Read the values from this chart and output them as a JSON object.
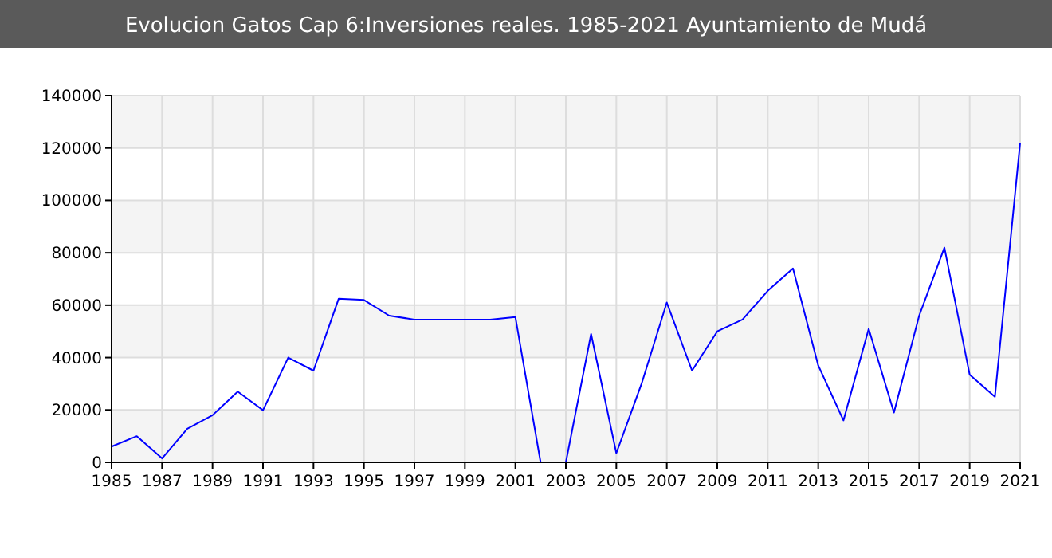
{
  "chart_data": {
    "type": "line",
    "title": "Evolucion Gatos Cap 6:Inversiones reales. 1985-2021 Ayuntamiento de Mudá",
    "x": [
      1985,
      1986,
      1987,
      1988,
      1989,
      1990,
      1991,
      1992,
      1993,
      1994,
      1995,
      1996,
      1997,
      1998,
      1999,
      2000,
      2001,
      2002,
      2003,
      2004,
      2005,
      2006,
      2007,
      2008,
      2009,
      2010,
      2011,
      2012,
      2013,
      2014,
      2015,
      2016,
      2017,
      2018,
      2019,
      2020,
      2021
    ],
    "series": [
      {
        "color": "#0000ff",
        "values": [
          6000,
          10000,
          1500,
          12800,
          18000,
          27000,
          19900,
          40000,
          35000,
          62500,
          62000,
          56000,
          54500,
          54500,
          54500,
          54500,
          55500,
          0,
          0,
          49000,
          3500,
          30000,
          61000,
          35000,
          50000,
          54500,
          65500,
          74000,
          37000,
          16000,
          51000,
          19000,
          56000,
          82000,
          33500,
          25000,
          122000
        ]
      }
    ],
    "xlim": [
      1985,
      2021
    ],
    "xticks": [
      1985,
      1987,
      1989,
      1991,
      1993,
      1995,
      1997,
      1999,
      2001,
      2003,
      2005,
      2007,
      2009,
      2011,
      2013,
      2015,
      2017,
      2019,
      2021
    ],
    "ylim": [
      0,
      140000
    ],
    "yticks": [
      0,
      20000,
      40000,
      60000,
      80000,
      100000,
      120000,
      140000
    ],
    "grid": true,
    "marker": "none",
    "line_style": "solid"
  }
}
